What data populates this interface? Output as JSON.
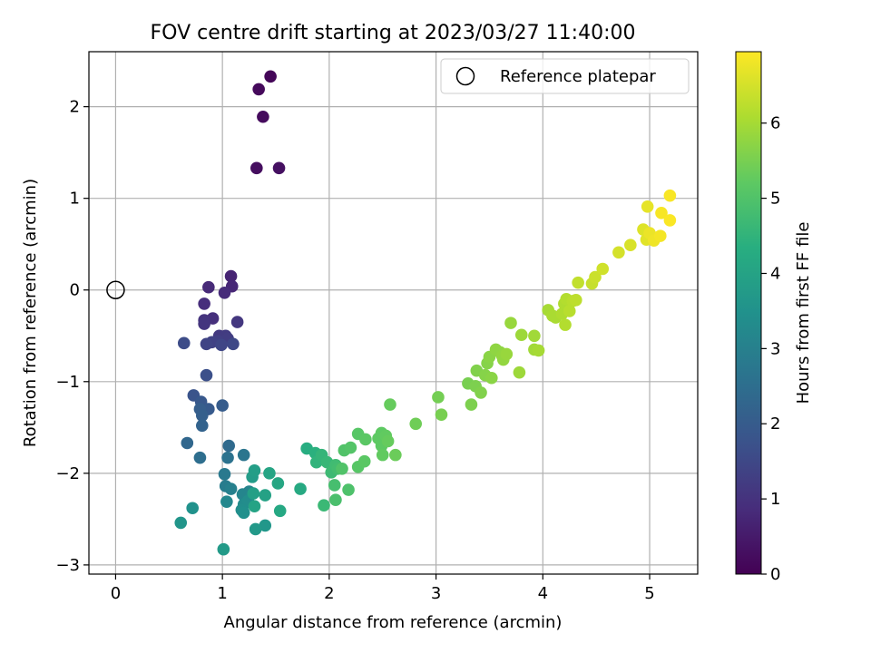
{
  "chart_data": {
    "type": "scatter",
    "title": "FOV centre drift starting at 2023/03/27 11:40:00",
    "xlabel": "Angular distance from reference (arcmin)",
    "ylabel": "Rotation from reference (arcmin)",
    "xlim": [
      -0.25,
      5.45
    ],
    "ylim": [
      -3.1,
      2.6
    ],
    "xticks": [
      0,
      1,
      2,
      3,
      4,
      5
    ],
    "xtick_labels": [
      "0",
      "1",
      "2",
      "3",
      "4",
      "5"
    ],
    "yticks": [
      -3,
      -2,
      -1,
      0,
      1,
      2
    ],
    "ytick_labels": [
      "−3",
      "−2",
      "−1",
      "0",
      "1",
      "2"
    ],
    "grid": true,
    "legend": {
      "placement": "top-right",
      "entries": [
        "Reference platepar"
      ]
    },
    "reference_point": {
      "name": "Reference platepar",
      "x": 0,
      "y": 0
    },
    "colorbar": {
      "label": "Hours from first FF file",
      "colormap": "viridis",
      "range": [
        0,
        6.95
      ],
      "ticks": [
        0,
        1,
        2,
        3,
        4,
        5,
        6
      ],
      "tick_labels": [
        "0",
        "1",
        "2",
        "3",
        "4",
        "5",
        "6"
      ]
    },
    "points": [
      {
        "x": 1.45,
        "y": 2.33,
        "t": 0.1
      },
      {
        "x": 1.34,
        "y": 2.19,
        "t": 0.15
      },
      {
        "x": 1.38,
        "y": 1.89,
        "t": 0.2
      },
      {
        "x": 1.32,
        "y": 1.33,
        "t": 0.25
      },
      {
        "x": 1.53,
        "y": 1.33,
        "t": 0.3
      },
      {
        "x": 1.08,
        "y": 0.15,
        "t": 0.7
      },
      {
        "x": 1.09,
        "y": 0.04,
        "t": 0.75
      },
      {
        "x": 0.87,
        "y": 0.03,
        "t": 0.8
      },
      {
        "x": 1.02,
        "y": -0.03,
        "t": 0.85
      },
      {
        "x": 0.83,
        "y": -0.15,
        "t": 0.9
      },
      {
        "x": 0.91,
        "y": -0.31,
        "t": 0.95
      },
      {
        "x": 0.83,
        "y": -0.33,
        "t": 1.0
      },
      {
        "x": 0.83,
        "y": -0.37,
        "t": 1.05
      },
      {
        "x": 1.14,
        "y": -0.35,
        "t": 1.1
      },
      {
        "x": 0.97,
        "y": -0.5,
        "t": 1.15
      },
      {
        "x": 1.03,
        "y": -0.5,
        "t": 1.2
      },
      {
        "x": 1.05,
        "y": -0.53,
        "t": 1.25
      },
      {
        "x": 0.96,
        "y": -0.56,
        "t": 1.3
      },
      {
        "x": 0.9,
        "y": -0.57,
        "t": 1.35
      },
      {
        "x": 0.85,
        "y": -0.59,
        "t": 1.4
      },
      {
        "x": 0.99,
        "y": -0.6,
        "t": 1.45
      },
      {
        "x": 1.1,
        "y": -0.59,
        "t": 1.5
      },
      {
        "x": 0.64,
        "y": -0.58,
        "t": 1.6
      },
      {
        "x": 0.85,
        "y": -0.93,
        "t": 1.7
      },
      {
        "x": 0.73,
        "y": -1.15,
        "t": 1.8
      },
      {
        "x": 0.8,
        "y": -1.22,
        "t": 1.9
      },
      {
        "x": 0.87,
        "y": -1.3,
        "t": 1.95
      },
      {
        "x": 1.0,
        "y": -1.26,
        "t": 2.0
      },
      {
        "x": 0.79,
        "y": -1.3,
        "t": 2.05
      },
      {
        "x": 0.81,
        "y": -1.37,
        "t": 2.1
      },
      {
        "x": 0.81,
        "y": -1.48,
        "t": 2.2
      },
      {
        "x": 0.67,
        "y": -1.67,
        "t": 2.3
      },
      {
        "x": 1.06,
        "y": -1.7,
        "t": 2.4
      },
      {
        "x": 0.79,
        "y": -1.83,
        "t": 2.5
      },
      {
        "x": 1.05,
        "y": -1.83,
        "t": 2.6
      },
      {
        "x": 1.2,
        "y": -1.8,
        "t": 2.7
      },
      {
        "x": 1.02,
        "y": -2.01,
        "t": 2.8
      },
      {
        "x": 1.03,
        "y": -2.14,
        "t": 2.9
      },
      {
        "x": 1.08,
        "y": -2.17,
        "t": 3.0
      },
      {
        "x": 1.25,
        "y": -2.2,
        "t": 3.1
      },
      {
        "x": 1.19,
        "y": -2.23,
        "t": 3.15
      },
      {
        "x": 1.04,
        "y": -2.31,
        "t": 3.2
      },
      {
        "x": 1.2,
        "y": -2.34,
        "t": 3.3
      },
      {
        "x": 1.24,
        "y": -2.3,
        "t": 3.35
      },
      {
        "x": 1.18,
        "y": -2.4,
        "t": 3.4
      },
      {
        "x": 1.2,
        "y": -2.43,
        "t": 3.45
      },
      {
        "x": 0.72,
        "y": -2.38,
        "t": 3.5
      },
      {
        "x": 0.61,
        "y": -2.54,
        "t": 3.6
      },
      {
        "x": 1.4,
        "y": -2.57,
        "t": 3.65
      },
      {
        "x": 1.31,
        "y": -2.61,
        "t": 3.7
      },
      {
        "x": 1.01,
        "y": -2.83,
        "t": 3.75
      },
      {
        "x": 1.28,
        "y": -2.04,
        "t": 3.8
      },
      {
        "x": 1.3,
        "y": -1.97,
        "t": 3.85
      },
      {
        "x": 1.29,
        "y": -2.22,
        "t": 3.9
      },
      {
        "x": 1.4,
        "y": -2.24,
        "t": 3.95
      },
      {
        "x": 1.3,
        "y": -2.36,
        "t": 4.0
      },
      {
        "x": 1.44,
        "y": -2.0,
        "t": 4.05
      },
      {
        "x": 1.52,
        "y": -2.11,
        "t": 4.1
      },
      {
        "x": 1.54,
        "y": -2.41,
        "t": 4.15
      },
      {
        "x": 1.73,
        "y": -2.17,
        "t": 4.2
      },
      {
        "x": 1.79,
        "y": -1.73,
        "t": 4.3
      },
      {
        "x": 1.87,
        "y": -1.78,
        "t": 4.4
      },
      {
        "x": 1.88,
        "y": -1.88,
        "t": 4.5
      },
      {
        "x": 1.93,
        "y": -1.8,
        "t": 4.55
      },
      {
        "x": 1.98,
        "y": -1.88,
        "t": 4.6
      },
      {
        "x": 1.95,
        "y": -2.35,
        "t": 4.65
      },
      {
        "x": 2.02,
        "y": -1.99,
        "t": 4.7
      },
      {
        "x": 2.06,
        "y": -1.91,
        "t": 4.75
      },
      {
        "x": 2.08,
        "y": -1.95,
        "t": 4.8
      },
      {
        "x": 2.05,
        "y": -2.13,
        "t": 4.85
      },
      {
        "x": 2.06,
        "y": -2.29,
        "t": 4.9
      },
      {
        "x": 2.18,
        "y": -2.18,
        "t": 4.95
      },
      {
        "x": 2.12,
        "y": -1.95,
        "t": 5.0
      },
      {
        "x": 2.14,
        "y": -1.75,
        "t": 5.0
      },
      {
        "x": 2.2,
        "y": -1.72,
        "t": 5.05
      },
      {
        "x": 2.27,
        "y": -1.57,
        "t": 5.1
      },
      {
        "x": 2.27,
        "y": -1.93,
        "t": 5.1
      },
      {
        "x": 2.33,
        "y": -1.87,
        "t": 5.15
      },
      {
        "x": 2.34,
        "y": -1.63,
        "t": 5.15
      },
      {
        "x": 2.46,
        "y": -1.62,
        "t": 5.2
      },
      {
        "x": 2.49,
        "y": -1.56,
        "t": 5.2
      },
      {
        "x": 2.49,
        "y": -1.7,
        "t": 5.2
      },
      {
        "x": 2.5,
        "y": -1.8,
        "t": 5.25
      },
      {
        "x": 2.53,
        "y": -1.59,
        "t": 5.25
      },
      {
        "x": 2.55,
        "y": -1.65,
        "t": 5.3
      },
      {
        "x": 2.57,
        "y": -1.25,
        "t": 5.3
      },
      {
        "x": 2.62,
        "y": -1.8,
        "t": 5.35
      },
      {
        "x": 2.81,
        "y": -1.46,
        "t": 5.4
      },
      {
        "x": 3.02,
        "y": -1.17,
        "t": 5.45
      },
      {
        "x": 3.05,
        "y": -1.36,
        "t": 5.5
      },
      {
        "x": 3.3,
        "y": -1.02,
        "t": 5.5
      },
      {
        "x": 3.33,
        "y": -1.25,
        "t": 5.55
      },
      {
        "x": 3.37,
        "y": -1.05,
        "t": 5.55
      },
      {
        "x": 3.38,
        "y": -0.88,
        "t": 5.6
      },
      {
        "x": 3.42,
        "y": -1.12,
        "t": 5.6
      },
      {
        "x": 3.46,
        "y": -0.93,
        "t": 5.65
      },
      {
        "x": 3.48,
        "y": -0.8,
        "t": 5.65
      },
      {
        "x": 3.5,
        "y": -0.73,
        "t": 5.7
      },
      {
        "x": 3.52,
        "y": -0.96,
        "t": 5.7
      },
      {
        "x": 3.56,
        "y": -0.65,
        "t": 5.75
      },
      {
        "x": 3.6,
        "y": -0.68,
        "t": 5.75
      },
      {
        "x": 3.62,
        "y": -0.72,
        "t": 5.8
      },
      {
        "x": 3.63,
        "y": -0.76,
        "t": 5.8
      },
      {
        "x": 3.66,
        "y": -0.7,
        "t": 5.85
      },
      {
        "x": 3.7,
        "y": -0.36,
        "t": 5.85
      },
      {
        "x": 3.78,
        "y": -0.9,
        "t": 5.9
      },
      {
        "x": 3.8,
        "y": -0.49,
        "t": 5.9
      },
      {
        "x": 3.92,
        "y": -0.5,
        "t": 5.95
      },
      {
        "x": 3.92,
        "y": -0.65,
        "t": 5.95
      },
      {
        "x": 3.96,
        "y": -0.66,
        "t": 6.0
      },
      {
        "x": 4.05,
        "y": -0.22,
        "t": 6.0
      },
      {
        "x": 4.09,
        "y": -0.28,
        "t": 6.05
      },
      {
        "x": 4.12,
        "y": -0.3,
        "t": 6.05
      },
      {
        "x": 4.18,
        "y": -0.26,
        "t": 6.1
      },
      {
        "x": 4.2,
        "y": -0.15,
        "t": 6.1
      },
      {
        "x": 4.21,
        "y": -0.38,
        "t": 6.15
      },
      {
        "x": 4.22,
        "y": -0.1,
        "t": 6.15
      },
      {
        "x": 4.25,
        "y": -0.23,
        "t": 6.2
      },
      {
        "x": 4.28,
        "y": -0.12,
        "t": 6.2
      },
      {
        "x": 4.31,
        "y": -0.11,
        "t": 6.25
      },
      {
        "x": 4.33,
        "y": 0.08,
        "t": 6.3
      },
      {
        "x": 4.46,
        "y": 0.07,
        "t": 6.35
      },
      {
        "x": 4.49,
        "y": 0.14,
        "t": 6.4
      },
      {
        "x": 4.56,
        "y": 0.23,
        "t": 6.45
      },
      {
        "x": 4.71,
        "y": 0.41,
        "t": 6.5
      },
      {
        "x": 4.82,
        "y": 0.49,
        "t": 6.55
      },
      {
        "x": 4.94,
        "y": 0.66,
        "t": 6.6
      },
      {
        "x": 4.97,
        "y": 0.55,
        "t": 6.65
      },
      {
        "x": 4.98,
        "y": 0.91,
        "t": 6.7
      },
      {
        "x": 5.0,
        "y": 0.62,
        "t": 6.75
      },
      {
        "x": 5.04,
        "y": 0.54,
        "t": 6.8
      },
      {
        "x": 5.1,
        "y": 0.59,
        "t": 6.85
      },
      {
        "x": 5.11,
        "y": 0.84,
        "t": 6.88
      },
      {
        "x": 5.19,
        "y": 1.03,
        "t": 6.9
      },
      {
        "x": 5.19,
        "y": 0.76,
        "t": 6.92
      }
    ]
  }
}
